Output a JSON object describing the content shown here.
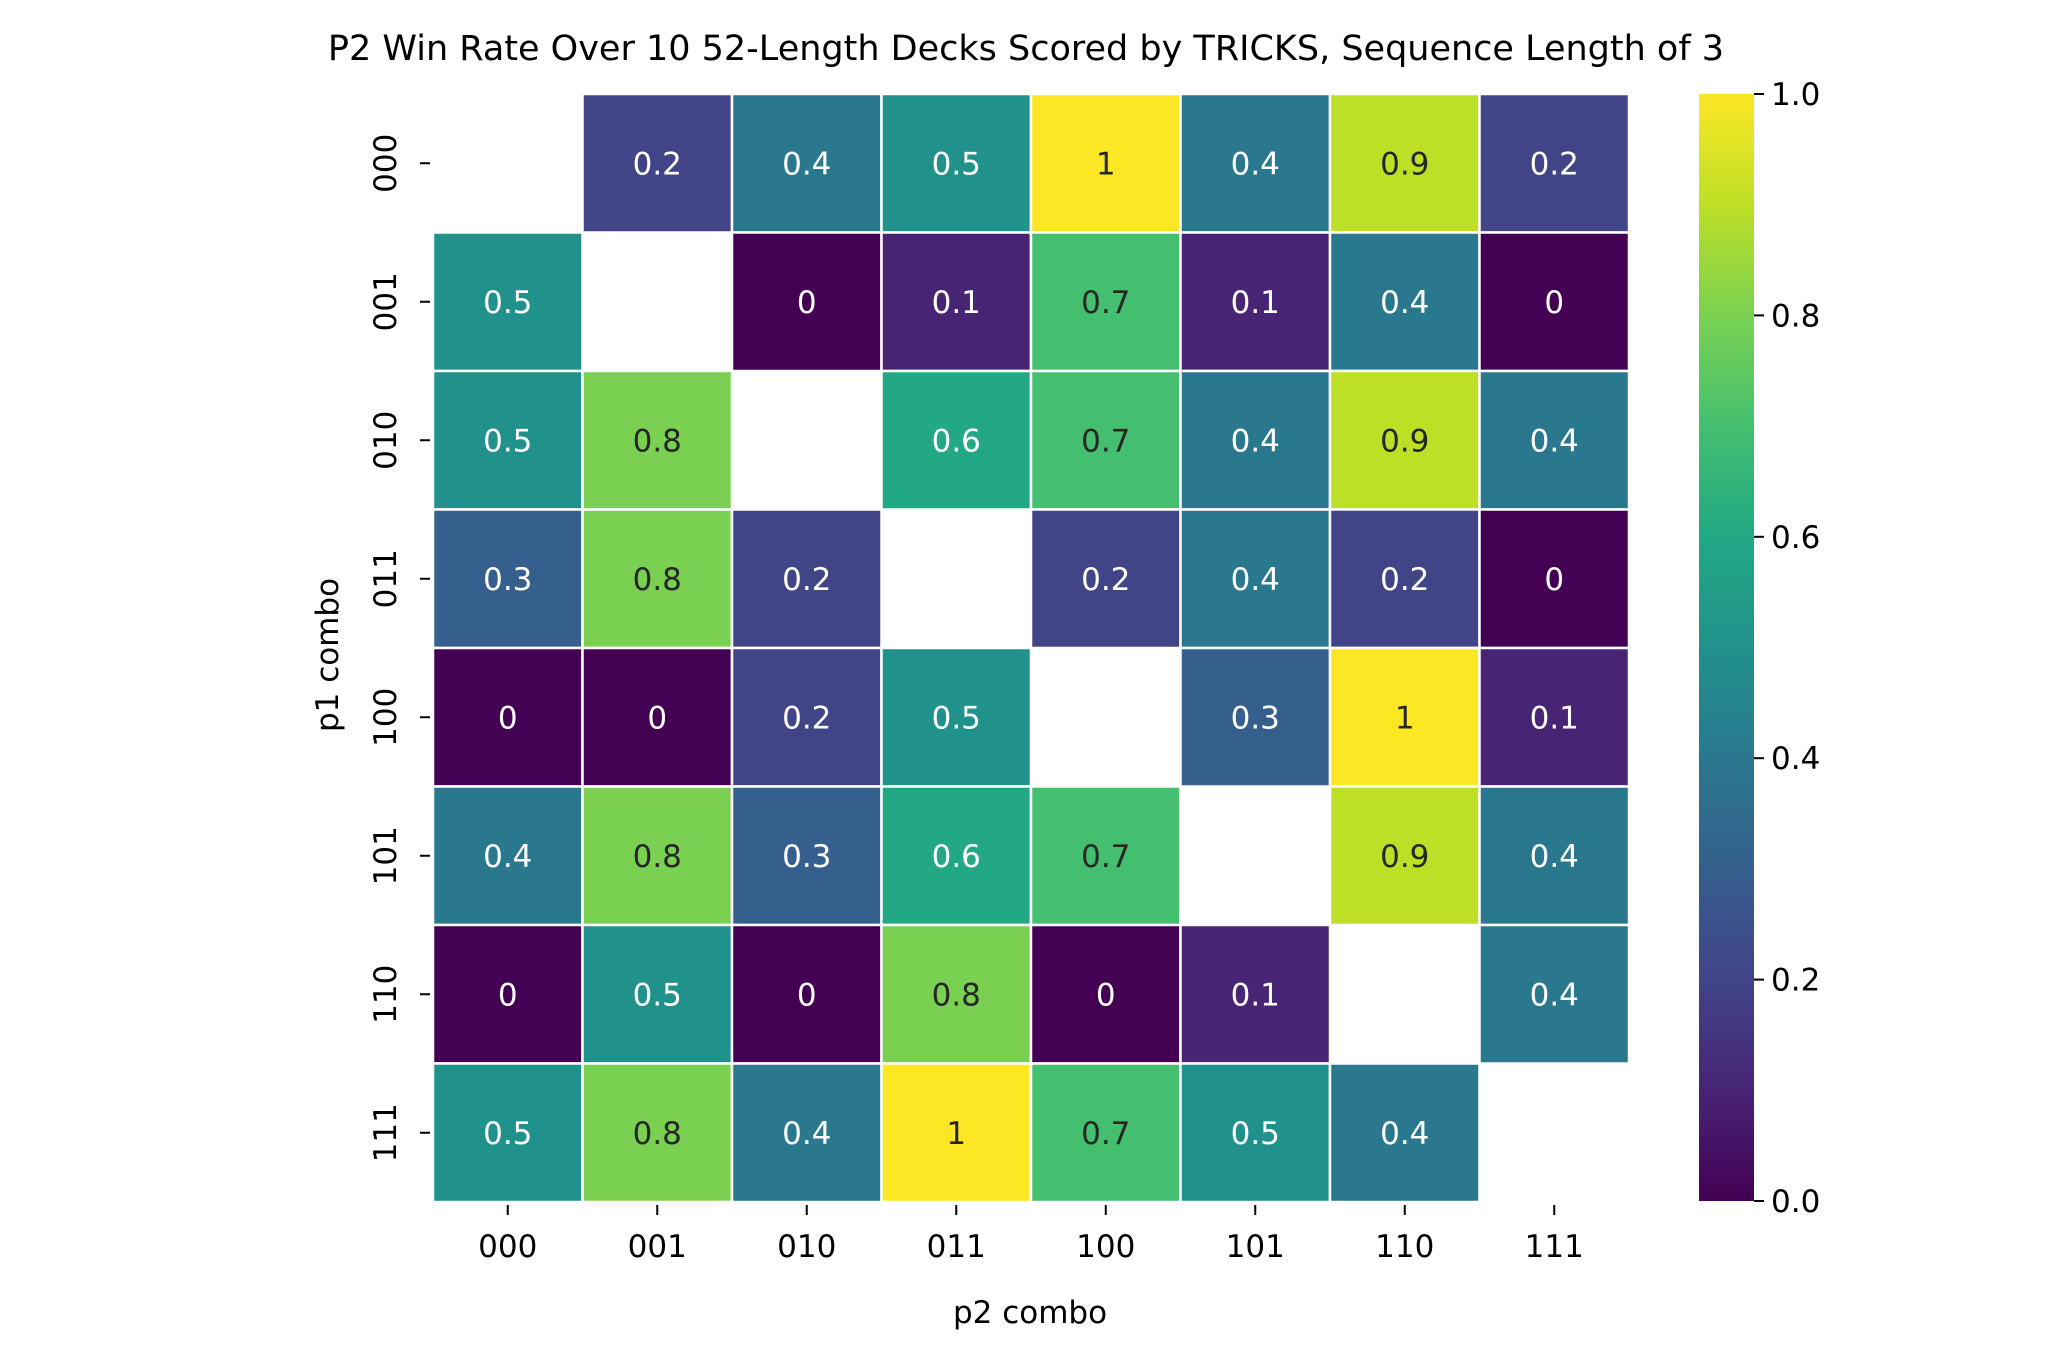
{
  "chart_data": {
    "type": "heatmap",
    "title": "P2 Win Rate Over 10 52-Length Decks Scored by TRICKS, Sequence Length of 3",
    "xlabel": "p2 combo",
    "ylabel": "p1 combo",
    "x_categories": [
      "000",
      "001",
      "010",
      "011",
      "100",
      "101",
      "110",
      "111"
    ],
    "y_categories": [
      "000",
      "001",
      "010",
      "011",
      "100",
      "101",
      "110",
      "111"
    ],
    "values": [
      [
        null,
        0.2,
        0.4,
        0.5,
        1,
        0.4,
        0.9,
        0.2
      ],
      [
        0.5,
        null,
        0,
        0.1,
        0.7,
        0.1,
        0.4,
        0
      ],
      [
        0.5,
        0.8,
        null,
        0.6,
        0.7,
        0.4,
        0.9,
        0.4
      ],
      [
        0.3,
        0.8,
        0.2,
        null,
        0.2,
        0.4,
        0.2,
        0
      ],
      [
        0,
        0,
        0.2,
        0.5,
        null,
        0.3,
        1,
        0.1
      ],
      [
        0.4,
        0.8,
        0.3,
        0.6,
        0.7,
        null,
        0.9,
        0.4
      ],
      [
        0,
        0.5,
        0,
        0.8,
        0,
        0.1,
        null,
        0.4
      ],
      [
        0.5,
        0.8,
        0.4,
        1,
        0.7,
        0.5,
        0.4,
        null
      ]
    ],
    "value_range": [
      0,
      1
    ],
    "colormap": "viridis",
    "colorbar": {
      "ticks": [
        "0.0",
        "0.2",
        "0.4",
        "0.6",
        "0.8",
        "1.0"
      ],
      "tick_values": [
        0,
        0.2,
        0.4,
        0.6,
        0.8,
        1.0
      ],
      "placement": "right"
    },
    "cell_border_color": "#ffffff",
    "annotation_colors": {
      "light": "#ffffff",
      "dark": "#262626"
    }
  }
}
